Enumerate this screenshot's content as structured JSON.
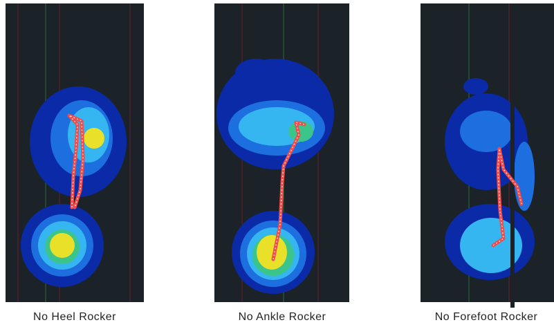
{
  "panels": [
    {
      "caption": "No Heel Rocker"
    },
    {
      "caption": "No Ankle Rocker"
    },
    {
      "caption": "No Forefoot Rocker"
    }
  ]
}
